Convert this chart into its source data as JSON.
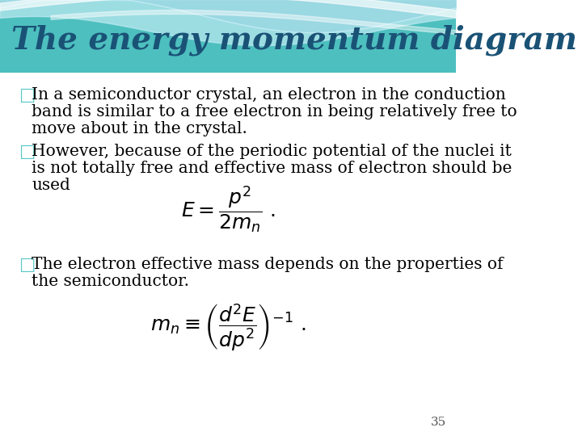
{
  "title": "The energy momentum diagram",
  "title_color": "#1a5276",
  "title_fontsize": 28,
  "bg_color": "#ffffff",
  "bullet_color": "#5bc8c8",
  "text_color": "#000000",
  "text_fontsize": 14.5,
  "formula1": "E = \\dfrac{p^2}{2m_n}\\ .",
  "formula2": "m_n \\equiv \\left(\\dfrac{d^2E}{dp^2}\\right)^{-1}\\ .",
  "page_number": "35",
  "header_teal": "#4dbfbf",
  "header_light1": "#a8dde9",
  "header_light2": "#c8eef5",
  "header_white_swoosh": "#ffffff"
}
